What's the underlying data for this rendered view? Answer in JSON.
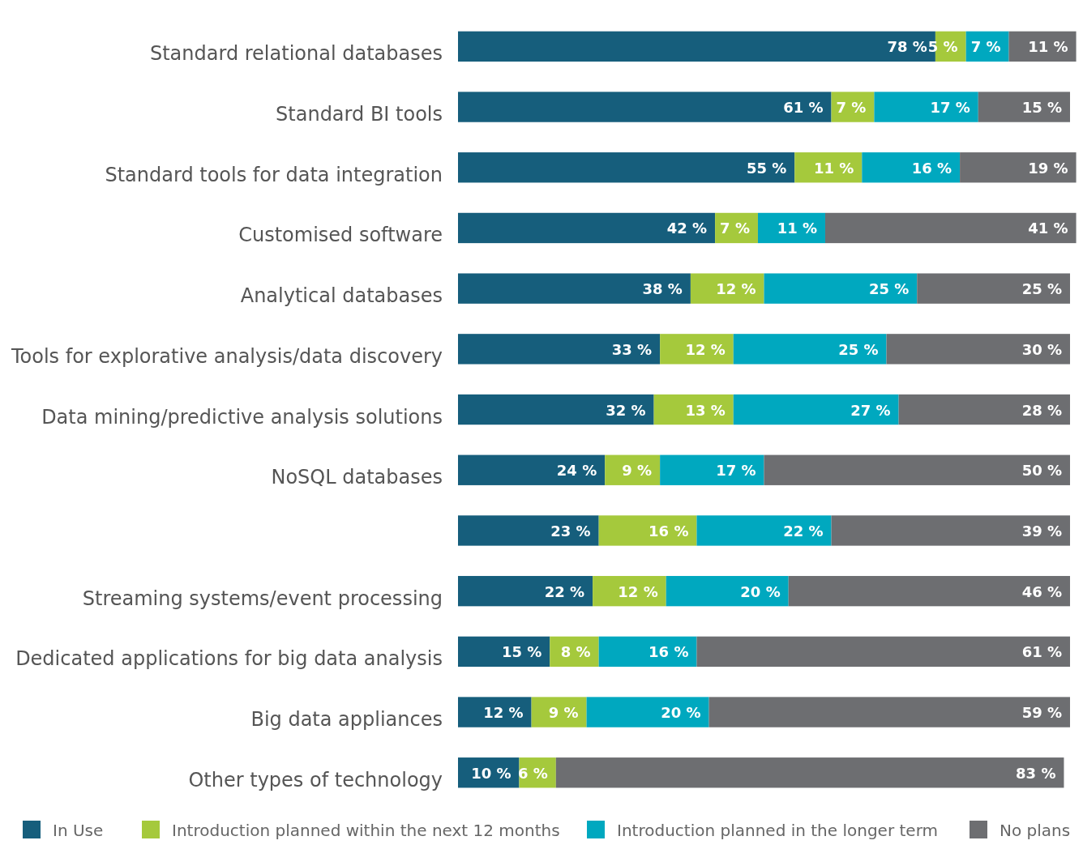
{
  "chart_data": {
    "type": "bar",
    "orientation": "horizontal",
    "stacked": true,
    "categories": [
      "Standard relational databases",
      "Standard BI tools",
      "Standard tools for data integration",
      "Customised software",
      "Analytical databases",
      "Tools for explorative analysis/data discovery",
      "Data mining/predictive analysis solutions",
      "NoSQL databases",
      null,
      "Streaming systems/event processing",
      "Dedicated applications for big data analysis",
      "Big data appliances",
      "Other types of technology"
    ],
    "xlim": [
      0,
      101
    ],
    "tick_labels": "y",
    "legend": "bottom",
    "series": [
      {
        "name": "In Use",
        "color": "#165e7c",
        "values": [
          78,
          61,
          55,
          42,
          38,
          33,
          32,
          24,
          23,
          22,
          15,
          12,
          10
        ],
        "value_labels": [
          "78 %",
          "61 %",
          "55 %",
          "42 %",
          "38 %",
          "33 %",
          "32 %",
          "24 %",
          "23 %",
          "22 %",
          "15 %",
          "12 %",
          "10 %"
        ]
      },
      {
        "name": "Introduction planned within the next 12 months",
        "color": "#a5c93c",
        "values": [
          5,
          7,
          11,
          7,
          12,
          12,
          13,
          9,
          16,
          12,
          8,
          9,
          6
        ],
        "value_labels": [
          "5 %",
          "7 %",
          "11 %",
          "7 %",
          "12 %",
          "12 %",
          "13 %",
          "9 %",
          "16 %",
          "12 %",
          "8 %",
          "9 %",
          "6 %"
        ]
      },
      {
        "name": "Introduction planned in the longer term",
        "color": "#00a8bf",
        "values": [
          7,
          17,
          16,
          11,
          25,
          25,
          27,
          17,
          22,
          20,
          16,
          20,
          null
        ],
        "value_labels": [
          "7 %",
          "17 %",
          "16 %",
          "11 %",
          "25 %",
          "25 %",
          "27 %",
          "17 %",
          "22 %",
          "20 %",
          "16 %",
          "20 %",
          null
        ]
      },
      {
        "name": "No plans",
        "color": "#6d6e71",
        "values": [
          11,
          15,
          19,
          41,
          25,
          30,
          28,
          50,
          39,
          46,
          61,
          59,
          83
        ],
        "value_labels": [
          "11 %",
          "15 %",
          "19 %",
          "41 %",
          "25 %",
          "30 %",
          "28 %",
          "50 %",
          "39 %",
          "46 %",
          "61 %",
          "59 %",
          "83 %"
        ]
      }
    ]
  }
}
